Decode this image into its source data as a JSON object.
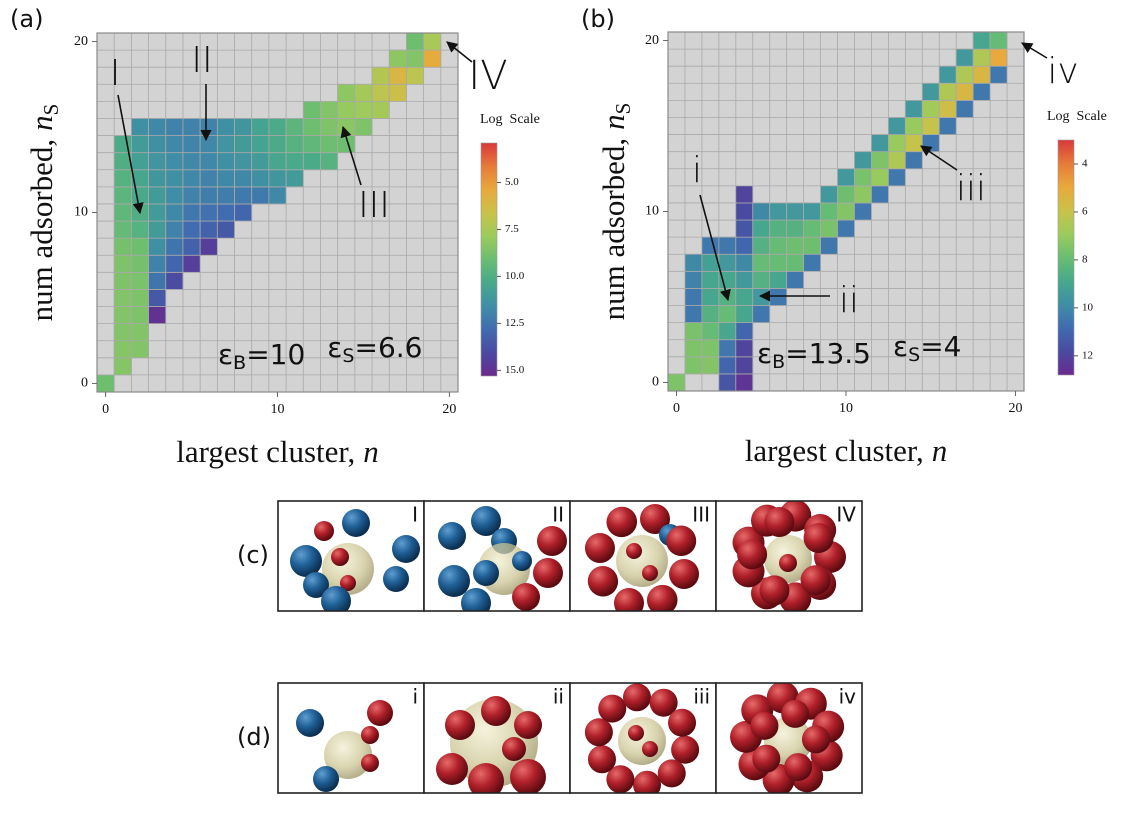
{
  "chart_data": [
    {
      "type": "heatmap",
      "panel_label": "(a)",
      "x": [
        0,
        1,
        1,
        1,
        1,
        1,
        1,
        1,
        1,
        1,
        1,
        1,
        1,
        1,
        1,
        2,
        2,
        2,
        2,
        2,
        2,
        2,
        2,
        2,
        2,
        2,
        2,
        2,
        2,
        3,
        3,
        3,
        3,
        3,
        3,
        3,
        3,
        3,
        3,
        3,
        3,
        4,
        4,
        4,
        4,
        4,
        4,
        4,
        4,
        4,
        4,
        5,
        5,
        5,
        5,
        5,
        5,
        5,
        5,
        5,
        6,
        6,
        6,
        6,
        6,
        6,
        6,
        6,
        7,
        7,
        7,
        7,
        7,
        7,
        7,
        8,
        8,
        8,
        8,
        8,
        8,
        9,
        9,
        9,
        9,
        9,
        10,
        10,
        10,
        10,
        10,
        11,
        11,
        11,
        11,
        12,
        12,
        12,
        12,
        13,
        13,
        13,
        13,
        14,
        14,
        14,
        14,
        15,
        15,
        15,
        16,
        16,
        16,
        17,
        17,
        17,
        18,
        18,
        18,
        19,
        19
      ],
      "y": [
        0,
        1,
        2,
        3,
        4,
        5,
        6,
        7,
        8,
        9,
        10,
        11,
        12,
        13,
        14,
        2,
        3,
        4,
        5,
        6,
        7,
        8,
        9,
        10,
        11,
        12,
        13,
        14,
        15,
        4,
        5,
        6,
        7,
        8,
        9,
        10,
        11,
        12,
        13,
        14,
        15,
        6,
        7,
        8,
        9,
        10,
        11,
        12,
        13,
        14,
        15,
        7,
        8,
        9,
        10,
        11,
        12,
        13,
        14,
        15,
        8,
        9,
        10,
        11,
        12,
        13,
        14,
        15,
        9,
        10,
        11,
        12,
        13,
        14,
        15,
        10,
        11,
        12,
        13,
        14,
        15,
        11,
        12,
        13,
        14,
        15,
        11,
        12,
        13,
        14,
        15,
        12,
        13,
        14,
        15,
        13,
        14,
        15,
        16,
        13,
        14,
        15,
        16,
        14,
        15,
        16,
        17,
        15,
        16,
        17,
        16,
        17,
        18,
        17,
        18,
        19,
        18,
        19,
        20,
        19,
        20
      ],
      "values": [
        9,
        8.4,
        8.4,
        8.5,
        8.5,
        8.5,
        8.6,
        8.6,
        8.8,
        9.3,
        9.5,
        9.6,
        9.8,
        10,
        10.2,
        8.5,
        8.5,
        8.6,
        8.6,
        8.7,
        8.8,
        9,
        9.8,
        10,
        10.3,
        10.5,
        10.8,
        11,
        11.5,
        15,
        13.5,
        12.5,
        12,
        11.5,
        11,
        11,
        11,
        11.2,
        11.3,
        11.5,
        11.8,
        14,
        13,
        12.5,
        12,
        11.8,
        11.6,
        11.5,
        11.6,
        11.8,
        12,
        14.5,
        13.2,
        12.8,
        12.4,
        12,
        11.8,
        11.8,
        11.9,
        12,
        14.5,
        13.2,
        12.6,
        12.2,
        12,
        11.8,
        11.8,
        12,
        13.5,
        12.8,
        12.2,
        11.8,
        11.5,
        11.3,
        11.5,
        13,
        12.3,
        11.8,
        11.3,
        11,
        11.2,
        12.3,
        11.5,
        11,
        10.6,
        10.6,
        11.8,
        11.2,
        10.5,
        10.2,
        10.2,
        11,
        10.3,
        9.8,
        9.6,
        10.2,
        9.5,
        9,
        9,
        9.8,
        9,
        8.6,
        8.5,
        9,
        8.3,
        8,
        8.2,
        8.6,
        7.8,
        7.6,
        7.6,
        7,
        7.2,
        6.5,
        6,
        8.2,
        7,
        8.5,
        9,
        5.5,
        7.5
      ],
      "xlim": [
        -0.5,
        20.5
      ],
      "ylim": [
        -0.5,
        20.5
      ],
      "xticks": [
        0,
        10,
        20
      ],
      "yticks": [
        0,
        10,
        20
      ],
      "xlabel": {
        "text": "largest cluster,",
        "var": "n"
      },
      "ylabel": {
        "text": "num adsorbed,",
        "var": "n",
        "sub": "S"
      },
      "grid": true,
      "background": "#d3d3d3",
      "grid_color": "#a9a9a9",
      "colorbar": {
        "title": "Log  Scale",
        "clim": [
          2.9,
          15.3
        ],
        "ticks": [
          {
            "value": 5,
            "label": "5.0"
          },
          {
            "value": 7.5,
            "label": "7.5"
          },
          {
            "value": 10,
            "label": "10.0"
          },
          {
            "value": 12.5,
            "label": "12.5"
          },
          {
            "value": 15,
            "label": "15.0"
          }
        ],
        "colormap": [
          "#d8393b",
          "#e67b3a",
          "#e9a83c",
          "#c9c24a",
          "#9ccb5c",
          "#6abd72",
          "#47a98b",
          "#3f8ea6",
          "#416bb0",
          "#4a4aa0",
          "#6a2a8e"
        ]
      },
      "annotations": [
        "I",
        "II",
        "III",
        "IV"
      ],
      "params": [
        {
          "symbol": "ε",
          "sub": "B",
          "text": "=10"
        },
        {
          "symbol": "ε",
          "sub": "S",
          "text": "=6.6"
        }
      ]
    },
    {
      "type": "heatmap",
      "panel_label": "(b)",
      "x": [
        0,
        1,
        1,
        1,
        1,
        1,
        1,
        1,
        2,
        2,
        2,
        2,
        2,
        2,
        2,
        2,
        3,
        3,
        3,
        3,
        3,
        3,
        3,
        3,
        3,
        4,
        4,
        4,
        4,
        4,
        4,
        4,
        4,
        4,
        4,
        4,
        4,
        5,
        5,
        5,
        5,
        5,
        5,
        5,
        6,
        6,
        6,
        6,
        6,
        6,
        7,
        7,
        7,
        7,
        7,
        8,
        8,
        8,
        8,
        9,
        9,
        9,
        9,
        10,
        10,
        10,
        10,
        11,
        11,
        11,
        11,
        12,
        12,
        12,
        12,
        13,
        13,
        13,
        13,
        14,
        14,
        14,
        14,
        15,
        15,
        15,
        15,
        16,
        16,
        16,
        16,
        17,
        17,
        17,
        17,
        18,
        18,
        18,
        18,
        19,
        19,
        19
      ],
      "y": [
        0,
        1,
        2,
        3,
        4,
        5,
        6,
        7,
        1,
        2,
        3,
        4,
        5,
        6,
        7,
        8,
        0,
        1,
        2,
        3,
        4,
        5,
        6,
        7,
        8,
        0,
        1,
        2,
        3,
        4,
        5,
        6,
        7,
        8,
        9,
        10,
        11,
        4,
        5,
        6,
        7,
        8,
        9,
        10,
        5,
        6,
        7,
        8,
        9,
        10,
        6,
        7,
        8,
        9,
        10,
        7,
        8,
        9,
        10,
        8,
        9,
        10,
        11,
        9,
        10,
        11,
        12,
        10,
        11,
        12,
        13,
        11,
        12,
        13,
        14,
        12,
        13,
        14,
        15,
        13,
        14,
        15,
        16,
        14,
        15,
        16,
        17,
        15,
        16,
        17,
        18,
        16,
        17,
        18,
        19,
        17,
        18,
        19,
        20,
        18,
        19,
        20
      ],
      "values": [
        7.5,
        7.5,
        7.5,
        7.6,
        10.5,
        10.5,
        10.2,
        10,
        7.4,
        7.5,
        8,
        8.5,
        9,
        9,
        9.2,
        10.5,
        11.5,
        11,
        10.5,
        9,
        8,
        8.5,
        9,
        9.5,
        10.5,
        12.5,
        12,
        12,
        11,
        9,
        9,
        9.5,
        10,
        11,
        11.5,
        11.8,
        12,
        10.5,
        9.5,
        8.5,
        8,
        8.5,
        9,
        10,
        10.5,
        9,
        8,
        8,
        8.5,
        9.5,
        10.5,
        8,
        7.8,
        8.5,
        9.5,
        10.5,
        7.8,
        8,
        9.5,
        10.5,
        7.6,
        8,
        9.5,
        10.5,
        7.4,
        7.8,
        9.5,
        10.5,
        7.2,
        7.6,
        9.5,
        10.5,
        7,
        7.5,
        9.5,
        10.5,
        6.5,
        7,
        9.5,
        10.5,
        6,
        7,
        9.5,
        10.5,
        6,
        6.8,
        9.5,
        10.5,
        5.8,
        6.5,
        9.5,
        10.5,
        5.5,
        6.5,
        9.5,
        10.5,
        5.5,
        6.5,
        9,
        10.5,
        5,
        8
      ],
      "xlim": [
        -0.5,
        20.5
      ],
      "ylim": [
        -0.5,
        20.5
      ],
      "xticks": [
        0,
        10,
        20
      ],
      "yticks": [
        0,
        10,
        20
      ],
      "xlabel": {
        "text": "largest cluster,",
        "var": "n"
      },
      "ylabel": {
        "text": "num adsorbed,",
        "var": "n",
        "sub": "S"
      },
      "grid": true,
      "background": "#d3d3d3",
      "grid_color": "#a9a9a9",
      "colorbar": {
        "title": "Log  Scale",
        "clim": [
          3,
          12.8
        ],
        "ticks": [
          4,
          6,
          8,
          10,
          12
        ],
        "colormap": [
          "#d8393b",
          "#e67b3a",
          "#e9a83c",
          "#c9c24a",
          "#9ccb5c",
          "#6abd72",
          "#47a98b",
          "#3f8ea6",
          "#416bb0",
          "#4a4aa0",
          "#6a2a8e"
        ]
      },
      "annotations": [
        "i",
        "ii",
        "iii",
        "iv"
      ],
      "params": [
        {
          "symbol": "ε",
          "sub": "B",
          "text": "=13.5"
        },
        {
          "symbol": "ε",
          "sub": "S",
          "text": "=4"
        }
      ]
    }
  ],
  "panels": [
    {
      "label": "(c)",
      "items": [
        "I",
        "II",
        "III",
        "IV"
      ]
    },
    {
      "label": "(d)",
      "items": [
        "i",
        "ii",
        "iii",
        "iv"
      ]
    }
  ]
}
